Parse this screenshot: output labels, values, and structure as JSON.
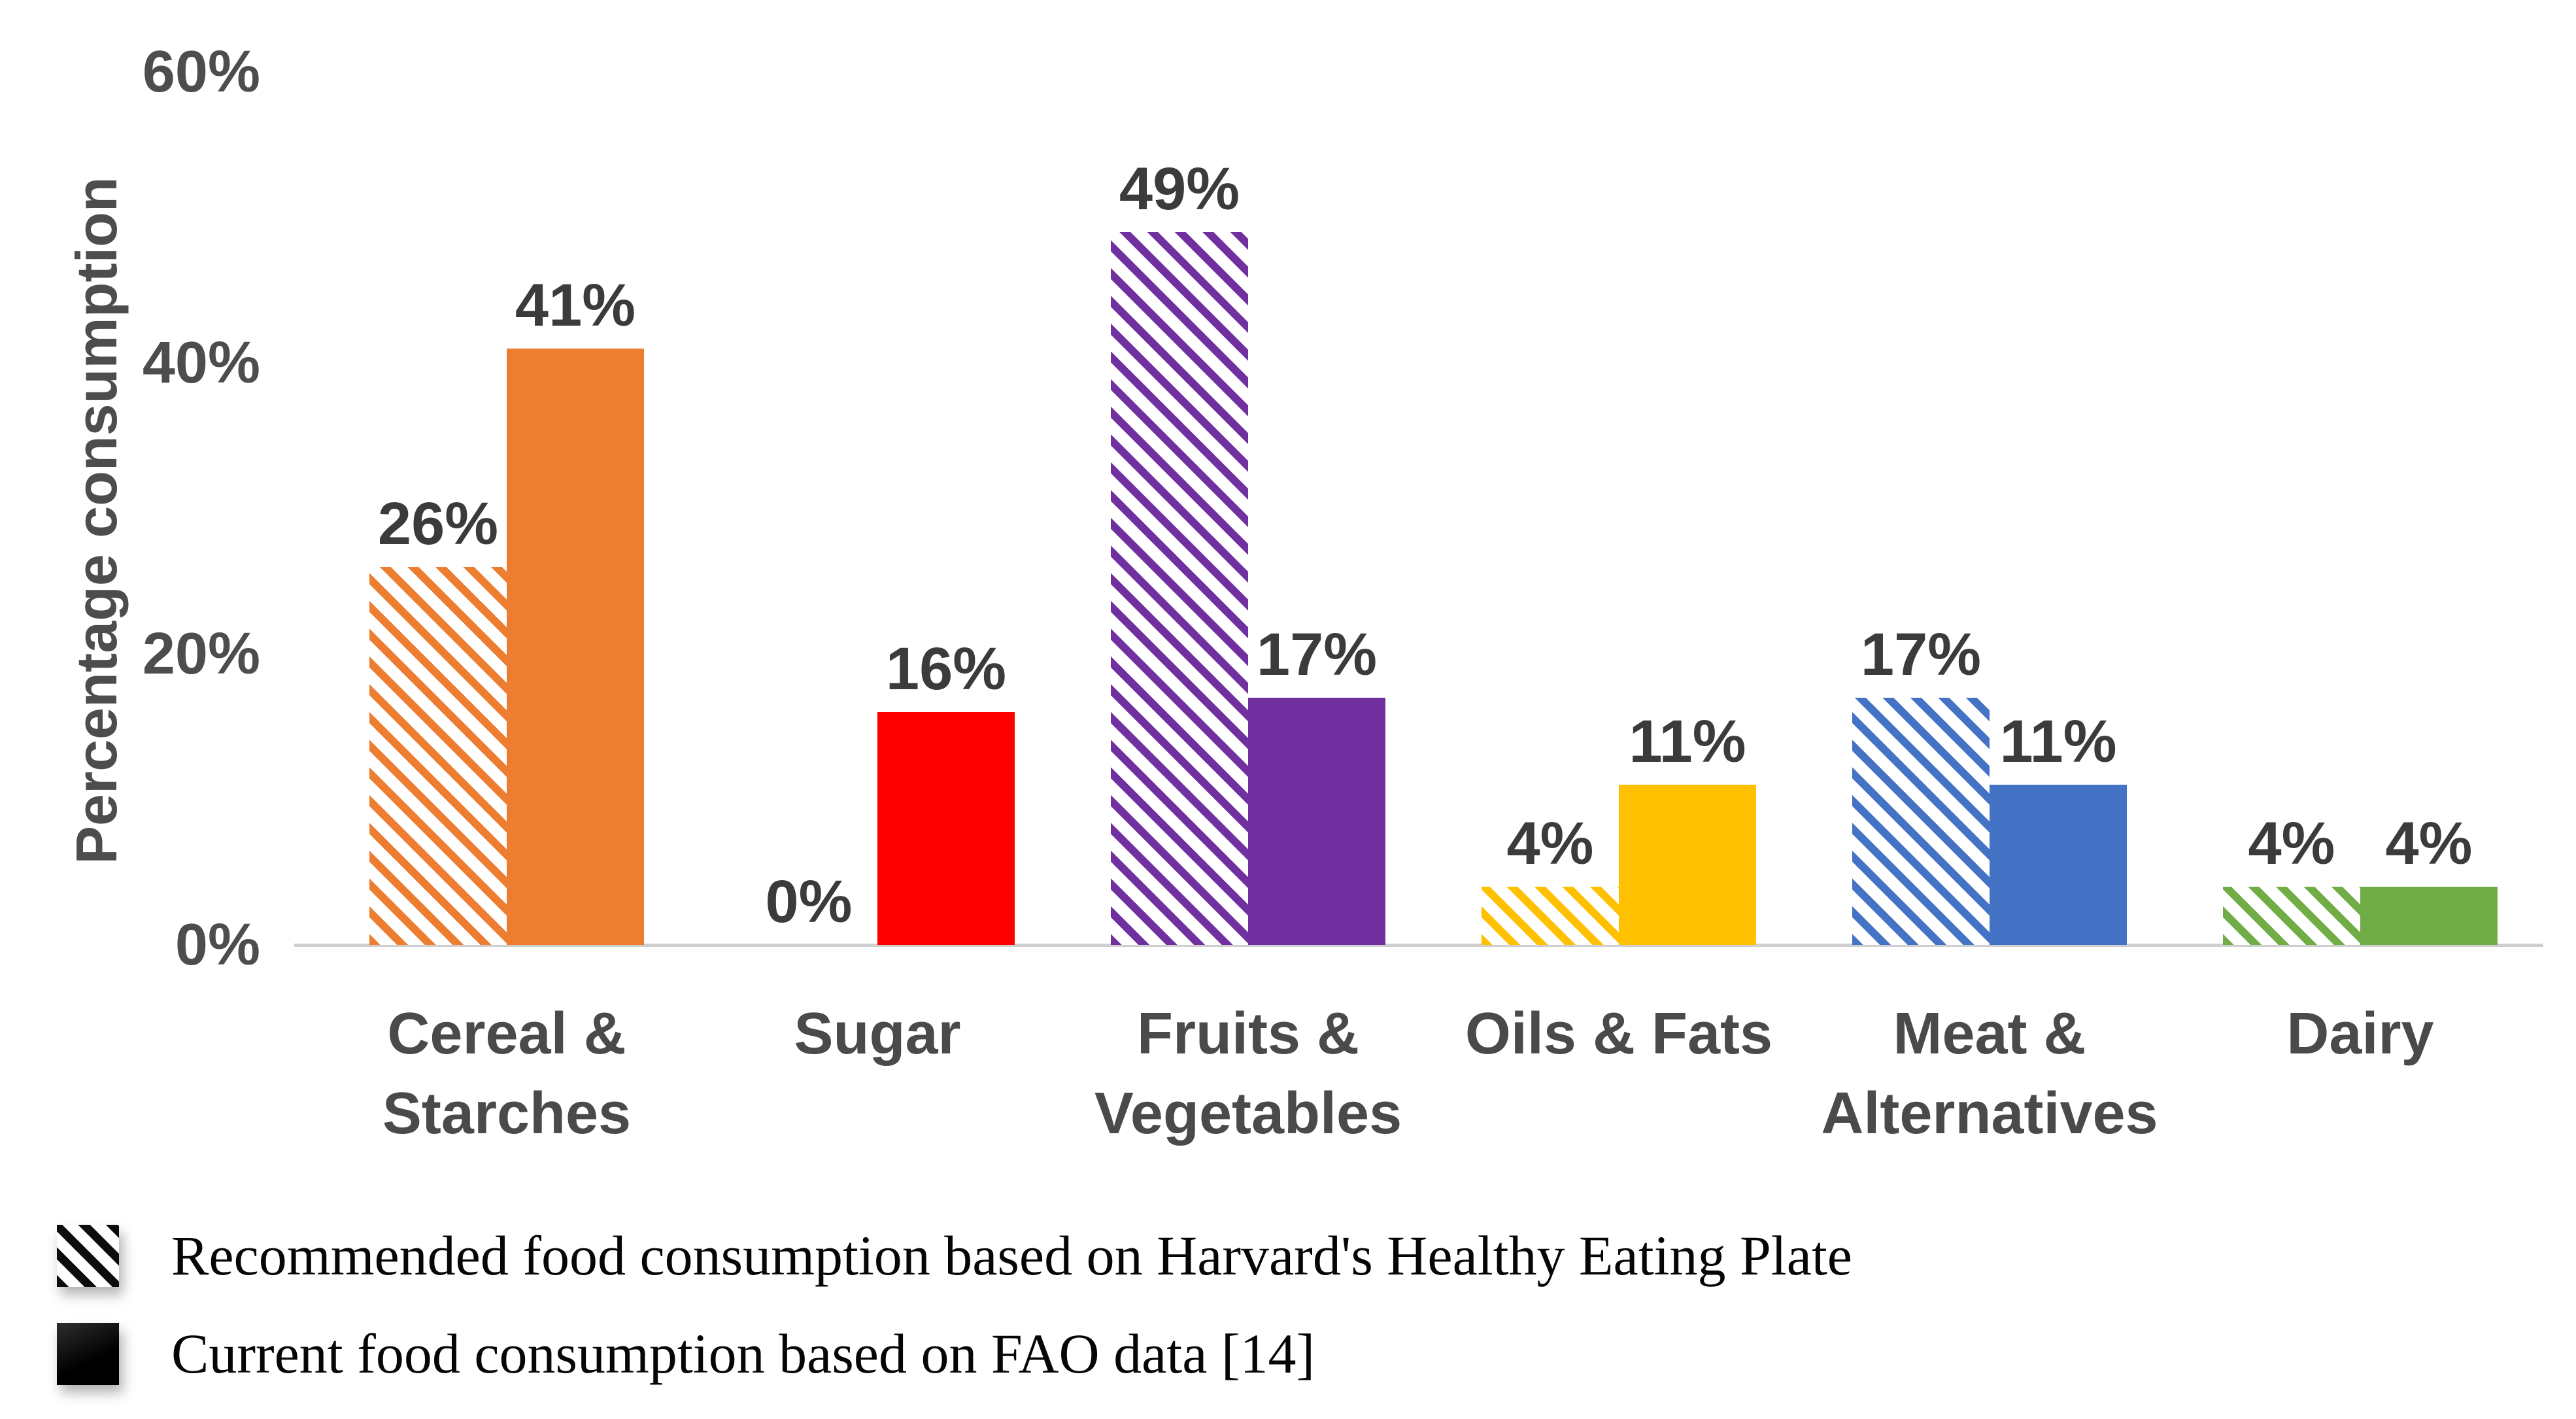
{
  "figure": {
    "background": "#ffffff"
  },
  "legend": {
    "items": [
      {
        "swatch": "hatched-black-diagonal",
        "label": "Recommended food consumption based on Harvard's Healthy Eating Plate"
      },
      {
        "swatch": "solid-black",
        "label": "Current food consumption based on FAO data [14]"
      }
    ]
  },
  "chart_data": {
    "type": "bar",
    "title": "",
    "xlabel": "",
    "ylabel": "Percentage consumption",
    "ylim": [
      0,
      60
    ],
    "grid": false,
    "legend_position": "bottom-left",
    "axis_line_color": "#cfcfcf",
    "text_color": "#4a4a4a",
    "y_ticks": [
      {
        "label": "0%",
        "value": 0
      },
      {
        "label": "20%",
        "value": 20
      },
      {
        "label": "40%",
        "value": 40
      },
      {
        "label": "60%",
        "value": 60
      }
    ],
    "categories": [
      "Cereal & Starches",
      "Sugar",
      "Fruits & Vegetables",
      "Oils & Fats",
      "Meat & Alternatives",
      "Dairy"
    ],
    "category_label_lines": [
      [
        "Cereal &",
        "Starches"
      ],
      [
        "Sugar"
      ],
      [
        "Fruits &",
        "Vegetables"
      ],
      [
        "Oils & Fats"
      ],
      [
        "Meat &",
        "Alternatives"
      ],
      [
        "Dairy"
      ]
    ],
    "category_colors": [
      "#ED7D31",
      "#FF0000",
      "#7030A0",
      "#FFC000",
      "#4472C4",
      "#70AD47"
    ],
    "series": [
      {
        "name": "Recommended food consumption based on Harvard's Healthy Eating Plate",
        "pattern": "hatched",
        "values": [
          26,
          0,
          49,
          4,
          17,
          4
        ],
        "labels": [
          "26%",
          "0%",
          "49%",
          "4%",
          "17%",
          "4%"
        ]
      },
      {
        "name": "Current food consumption based on FAO data [14]",
        "pattern": "solid",
        "values": [
          41,
          16,
          17,
          11,
          11,
          4
        ],
        "labels": [
          "41%",
          "16%",
          "17%",
          "11%",
          "11%",
          "4%"
        ]
      }
    ]
  }
}
